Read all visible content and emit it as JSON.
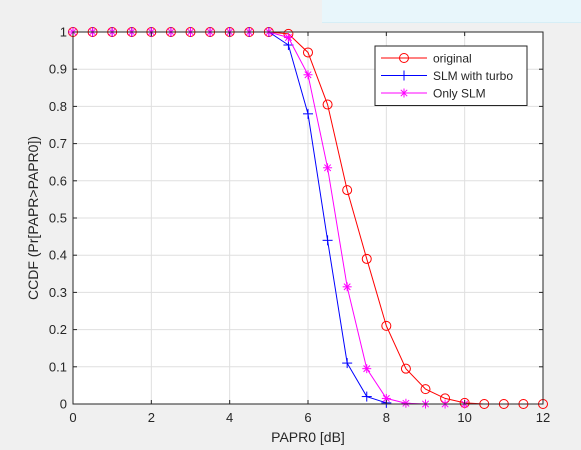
{
  "chart_data": {
    "type": "line",
    "xlabel": "PAPR0 [dB]",
    "ylabel": "CCDF (Pr[PAPR>PAPR0])",
    "xlim": [
      0,
      12
    ],
    "ylim": [
      0,
      1
    ],
    "x_ticks": [
      "0",
      "2",
      "4",
      "6",
      "8",
      "10",
      "12"
    ],
    "y_ticks": [
      "0",
      "0.1",
      "0.2",
      "0.3",
      "0.4",
      "0.5",
      "0.6",
      "0.7",
      "0.8",
      "0.9",
      "1"
    ],
    "grid": true,
    "legend_position": "top-right",
    "series": [
      {
        "name": "original",
        "color": "#ff0000",
        "marker": "circle",
        "x": [
          0,
          0.5,
          1,
          1.5,
          2,
          2.5,
          3,
          3.5,
          4,
          4.5,
          5,
          5.5,
          6,
          6.5,
          7,
          7.5,
          8,
          8.5,
          9,
          9.5,
          10,
          10.5,
          11,
          11.5,
          12
        ],
        "y": [
          1,
          1,
          1,
          1,
          1,
          1,
          1,
          1,
          1,
          1,
          1,
          0.995,
          0.945,
          0.805,
          0.575,
          0.39,
          0.21,
          0.095,
          0.04,
          0.015,
          0.003,
          0,
          0,
          0,
          0
        ]
      },
      {
        "name": "SLM with turbo",
        "color": "#0000ff",
        "marker": "plus",
        "x": [
          0,
          0.5,
          1,
          1.5,
          2,
          2.5,
          3,
          3.5,
          4,
          4.5,
          5,
          5.5,
          6,
          6.5,
          7,
          7.5,
          8
        ],
        "y": [
          1,
          1,
          1,
          1,
          1,
          1,
          1,
          1,
          1,
          1,
          1,
          0.965,
          0.78,
          0.44,
          0.11,
          0.02,
          0.003
        ]
      },
      {
        "name": "Only SLM",
        "color": "#ff00ff",
        "marker": "asterisk",
        "x": [
          0,
          0.5,
          1,
          1.5,
          2,
          2.5,
          3,
          3.5,
          4,
          4.5,
          5,
          5.5,
          6,
          6.5,
          7,
          7.5,
          8,
          8.5,
          9,
          9.5,
          10
        ],
        "y": [
          1,
          1,
          1,
          1,
          1,
          1,
          1,
          1,
          1,
          1,
          1,
          0.985,
          0.885,
          0.635,
          0.315,
          0.095,
          0.015,
          0.002,
          0,
          0,
          0
        ]
      }
    ]
  }
}
